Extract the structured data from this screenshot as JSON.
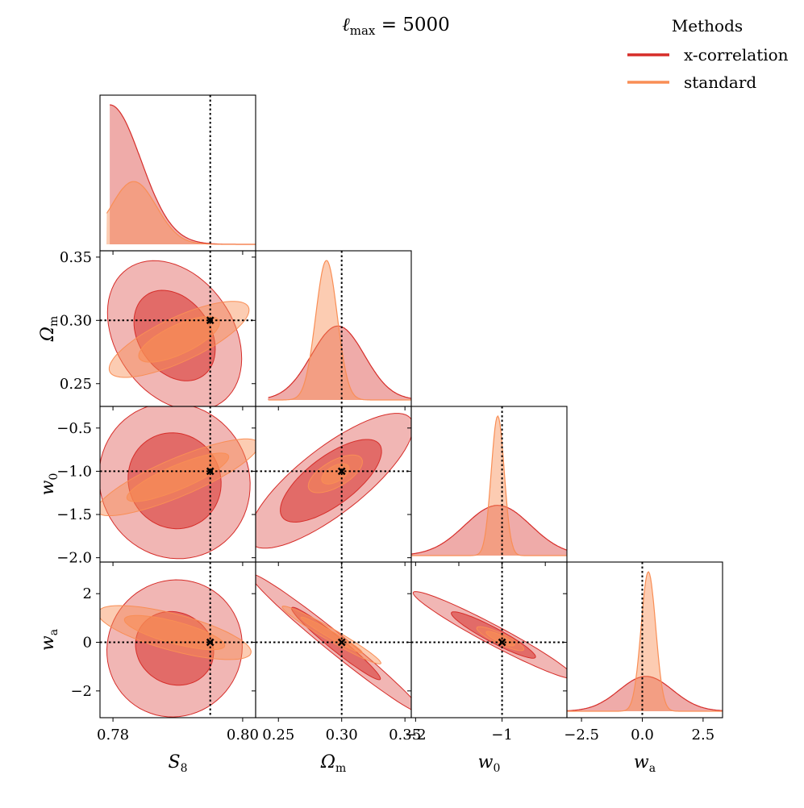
{
  "chart_data": {
    "type": "corner",
    "title": "ℓ_max = 5000",
    "title_parts": {
      "base": "ℓ",
      "sub": "max",
      "rest": " = 5000"
    },
    "legend": {
      "title": "Methods",
      "placement": "top-right",
      "entries": [
        {
          "name": "x-correlation",
          "color": "#d62d29"
        },
        {
          "name": "standard",
          "color": "#f98e55"
        }
      ]
    },
    "parameters": [
      {
        "key": "S8",
        "label": "S_8",
        "label_base": "S",
        "label_sub": "8",
        "fiducial": 0.795,
        "range": [
          0.778,
          0.802
        ],
        "ticks": [
          {
            "v": 0.78,
            "t": "0.78"
          },
          {
            "v": 0.8,
            "t": "0.80"
          }
        ]
      },
      {
        "key": "Om",
        "label": "Ω_m",
        "label_base": "Ω",
        "label_sub": "m",
        "fiducial": 0.3,
        "range": [
          0.232,
          0.355
        ],
        "ticks": [
          {
            "v": 0.25,
            "t": "0.25"
          },
          {
            "v": 0.3,
            "t": "0.30"
          },
          {
            "v": 0.35,
            "t": "0.35"
          }
        ]
      },
      {
        "key": "w0",
        "label": "w_0",
        "label_base": "w",
        "label_sub": "0",
        "fiducial": -1.0,
        "range": [
          -2.05,
          -0.25
        ],
        "ticks": [
          {
            "v": -2.0,
            "t": "−2.0"
          },
          {
            "v": -1.5,
            "t": "−1.5"
          },
          {
            "v": -1.0,
            "t": "−1.0"
          },
          {
            "v": -0.5,
            "t": "−0.5"
          }
        ],
        "bottom_ticks": [
          {
            "v": -2,
            "t": "−2"
          },
          {
            "v": -1,
            "t": "−1"
          }
        ]
      },
      {
        "key": "wa",
        "label": "w_a",
        "label_base": "w",
        "label_sub": "a",
        "fiducial": 0.0,
        "range": [
          -3.1,
          3.3
        ],
        "ticks": [
          {
            "v": -2,
            "t": "−2"
          },
          {
            "v": 0,
            "t": "0"
          },
          {
            "v": 2,
            "t": "2"
          }
        ],
        "bottom_ticks": [
          {
            "v": -2.5,
            "t": "−2.5"
          },
          {
            "v": 0.0,
            "t": "0.0"
          },
          {
            "v": 2.5,
            "t": "2.5"
          }
        ]
      }
    ],
    "series": [
      {
        "name": "x-correlation",
        "marginals": [
          {
            "type": "halfnormal",
            "lower": 0.7795,
            "sigma": 0.0048,
            "peak": 1.0,
            "fill_start": 0.7795
          },
          {
            "type": "normal",
            "mean": 0.297,
            "sigma": 0.021,
            "peak": 0.53,
            "fill_start": 0.2415
          },
          {
            "type": "normal",
            "mean": -1.05,
            "sigma": 0.38,
            "peak": 0.36,
            "fill_start": -2.05
          },
          {
            "type": "normal",
            "mean": 0.15,
            "sigma": 1.1,
            "peak": 0.25,
            "fill_start": -3.1
          }
        ],
        "ellipses": [
          {
            "pair": [
              0,
              1
            ],
            "center": [
              0.7895,
              0.288
            ],
            "inner": {
              "a": 0.0076,
              "b": 0.0282,
              "angle": -55
            },
            "outer": {
              "a": 0.0126,
              "b": 0.0463,
              "angle": -55
            }
          },
          {
            "pair": [
              0,
              2
            ],
            "center": [
              0.7895,
              -1.11
            ],
            "inner": {
              "a": 0.0075,
              "b": 0.53,
              "angle": -60
            },
            "outer": {
              "a": 0.0122,
              "b": 0.86,
              "angle": -60
            }
          },
          {
            "pair": [
              1,
              2
            ],
            "center": [
              0.2915,
              -1.11
            ],
            "inner": {
              "a": 0.048,
              "b": 0.28,
              "angle": 37
            },
            "outer": {
              "a": 0.08,
              "b": 0.38,
              "angle": 38
            }
          },
          {
            "pair": [
              0,
              3
            ],
            "center": [
              0.7895,
              -0.25
            ],
            "inner": {
              "a": 0.0055,
              "b": 1.65,
              "angle": 60
            },
            "outer": {
              "a": 0.0107,
              "b": 2.75,
              "angle": 55
            }
          },
          {
            "pair": [
              1,
              3
            ],
            "center": [
              0.2955,
              -0.05
            ],
            "inner": {
              "a": 0.045,
              "b": 0.28,
              "angle": -39
            },
            "outer": {
              "a": 0.087,
              "b": 0.4,
              "angle": -39
            }
          },
          {
            "pair": [
              2,
              3
            ],
            "center": [
              -1.1,
              0.3
            ],
            "inner": {
              "a": 0.55,
              "b": 0.3,
              "angle": -28
            },
            "outer": {
              "a": 1.05,
              "b": 0.4,
              "angle": -28
            }
          }
        ]
      },
      {
        "name": "standard",
        "marginals": [
          {
            "type": "normal",
            "mean": 0.7832,
            "sigma": 0.0035,
            "peak": 0.45,
            "fill_start": 0.779
          },
          {
            "type": "normal",
            "mean": 0.288,
            "sigma": 0.0085,
            "peak": 1.0,
            "fill_start": 0.2415
          },
          {
            "type": "normal",
            "mean": -1.05,
            "sigma": 0.075,
            "peak": 1.0,
            "fill_start": -2.05
          },
          {
            "type": "normal",
            "mean": 0.25,
            "sigma": 0.3,
            "peak": 1.0,
            "fill_start": -3.1
          }
        ],
        "ellipses": [
          {
            "pair": [
              0,
              1
            ],
            "center": [
              0.7902,
              0.285
            ],
            "inner": {
              "a": 0.0068,
              "b": 0.0115,
              "angle": 25
            },
            "outer": {
              "a": 0.0118,
              "b": 0.0175,
              "angle": 25
            }
          },
          {
            "pair": [
              0,
              2
            ],
            "center": [
              0.79,
              -1.07
            ],
            "inner": {
              "a": 0.0085,
              "b": 0.14,
              "angle": 23
            },
            "outer": {
              "a": 0.0135,
              "b": 0.22,
              "angle": 23
            }
          },
          {
            "pair": [
              1,
              2
            ],
            "center": [
              0.295,
              -1.03
            ],
            "inner": {
              "a": 0.012,
              "b": 0.09,
              "angle": 30
            },
            "outer": {
              "a": 0.024,
              "b": 0.15,
              "angle": 30
            }
          },
          {
            "pair": [
              0,
              3
            ],
            "center": [
              0.7895,
              0.4
            ],
            "inner": {
              "a": 0.008,
              "b": 0.45,
              "angle": -15
            },
            "outer": {
              "a": 0.0122,
              "b": 0.75,
              "angle": -15
            }
          },
          {
            "pair": [
              1,
              3
            ],
            "center": [
              0.292,
              0.3
            ],
            "inner": {
              "a": 0.028,
              "b": 0.14,
              "angle": -30
            },
            "outer": {
              "a": 0.045,
              "b": 0.25,
              "angle": -30
            }
          },
          {
            "pair": [
              2,
              3
            ],
            "center": [
              -1.02,
              0.15
            ],
            "inner": {
              "a": 0.18,
              "b": 0.14,
              "angle": -25
            },
            "outer": {
              "a": 0.3,
              "b": 0.22,
              "angle": -25
            }
          }
        ]
      }
    ]
  }
}
